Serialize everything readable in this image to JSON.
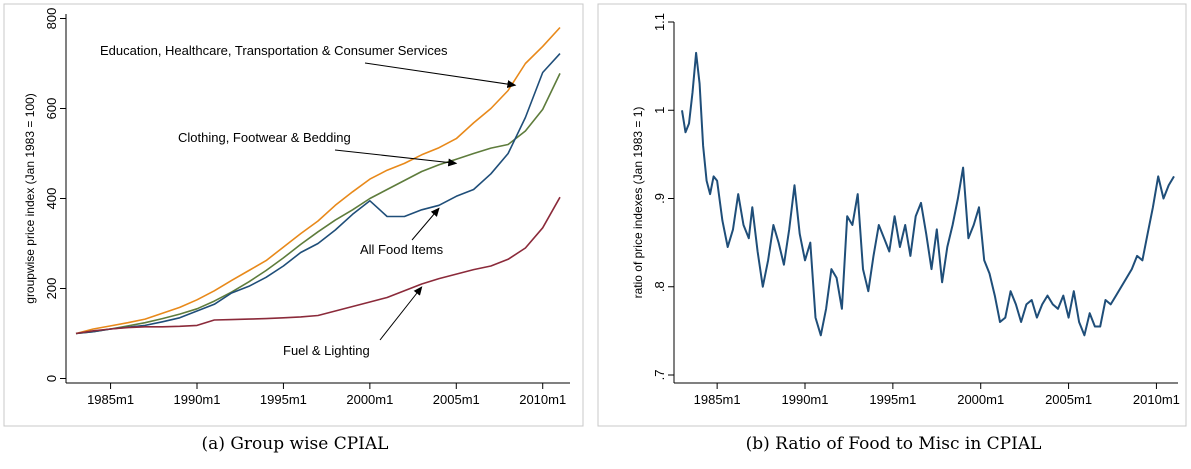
{
  "chart_data": [
    {
      "type": "line",
      "panel": "a",
      "caption": "(a) Group wise CPIAL",
      "ylabel": "groupwise price index (Jan 1983 = 100)",
      "xlabel": "",
      "xlim": [
        "1983m1",
        "2011m1"
      ],
      "ylim": [
        -10,
        810
      ],
      "grid": false,
      "legend": "none",
      "xticks": [
        "1985m1",
        "1990m1",
        "1995m1",
        "2000m1",
        "2005m1",
        "2010m1"
      ],
      "yticks": [
        "0",
        "200",
        "400",
        "600",
        "800"
      ],
      "x": [
        "1983m1",
        "1984m1",
        "1985m1",
        "1986m1",
        "1987m1",
        "1988m1",
        "1989m1",
        "1990m1",
        "1991m1",
        "1992m1",
        "1993m1",
        "1994m1",
        "1995m1",
        "1996m1",
        "1997m1",
        "1998m1",
        "1999m1",
        "2000m1",
        "2001m1",
        "2002m1",
        "2003m1",
        "2004m1",
        "2005m1",
        "2006m1",
        "2007m1",
        "2008m1",
        "2009m1",
        "2010m1",
        "2011m1"
      ],
      "series": [
        {
          "label": "Education, Healthcare, Transportation & Consumer Services",
          "color": "#e8891a",
          "values": [
            100,
            110,
            117,
            124,
            132,
            145,
            158,
            175,
            195,
            218,
            240,
            262,
            292,
            322,
            350,
            385,
            415,
            443,
            463,
            478,
            497,
            513,
            533,
            568,
            600,
            640,
            700,
            738,
            780
          ]
        },
        {
          "label": "Clothing, Footwear & Bedding",
          "color": "#5e7c3c",
          "values": [
            100,
            104,
            110,
            117,
            124,
            133,
            143,
            155,
            172,
            192,
            215,
            240,
            268,
            298,
            326,
            352,
            375,
            400,
            420,
            440,
            460,
            475,
            487,
            500,
            512,
            520,
            550,
            598,
            678
          ]
        },
        {
          "label": "All Food Items",
          "color": "#1f4e79",
          "values": [
            100,
            104,
            110,
            114,
            118,
            126,
            135,
            150,
            165,
            190,
            205,
            225,
            250,
            280,
            300,
            330,
            365,
            395,
            360,
            360,
            375,
            385,
            405,
            420,
            455,
            500,
            580,
            680,
            722
          ]
        },
        {
          "label": "Fuel & Lighting",
          "color": "#8b2a3a",
          "values": [
            100,
            106,
            110,
            113,
            115,
            115,
            116,
            118,
            130,
            131,
            132,
            133,
            135,
            137,
            140,
            150,
            160,
            170,
            180,
            195,
            210,
            222,
            232,
            242,
            250,
            265,
            290,
            335,
            403
          ]
        }
      ],
      "annotations": [
        {
          "text": "Education, Healthcare, Transportation & Consumer Services",
          "target": "2008m6"
        },
        {
          "text": "Clothing, Footwear & Bedding",
          "target": "2005m1"
        },
        {
          "text": "All Food Items",
          "target": "2004m1"
        },
        {
          "text": "Fuel & Lighting",
          "target": "2003m1"
        }
      ]
    },
    {
      "type": "line",
      "panel": "b",
      "caption": "(b) Ratio of Food to Misc in CPIAL",
      "ylabel": "ratio of price indexes (Jan 1983 = 1)",
      "xlabel": "",
      "xlim": [
        "1983m1",
        "2011m1"
      ],
      "ylim": [
        0.7,
        1.1
      ],
      "grid": false,
      "legend": "none",
      "xticks": [
        "1985m1",
        "1990m1",
        "1995m1",
        "2000m1",
        "2005m1",
        "2010m1"
      ],
      "yticks": [
        ".7",
        ".8",
        ".9",
        "1",
        "1.1"
      ],
      "series": [
        {
          "color": "#1f4e79",
          "x": [
            1983.0,
            1983.2,
            1983.4,
            1983.6,
            1983.8,
            1984.0,
            1984.2,
            1984.4,
            1984.6,
            1984.8,
            1985.0,
            1985.3,
            1985.6,
            1985.9,
            1986.2,
            1986.5,
            1986.8,
            1987.0,
            1987.3,
            1987.6,
            1987.9,
            1988.2,
            1988.5,
            1988.8,
            1989.1,
            1989.4,
            1989.7,
            1990.0,
            1990.3,
            1990.6,
            1990.9,
            1991.2,
            1991.5,
            1991.8,
            1992.1,
            1992.4,
            1992.7,
            1993.0,
            1993.3,
            1993.6,
            1993.9,
            1994.2,
            1994.5,
            1994.8,
            1995.1,
            1995.4,
            1995.7,
            1996.0,
            1996.3,
            1996.6,
            1996.9,
            1997.2,
            1997.5,
            1997.8,
            1998.1,
            1998.4,
            1998.7,
            1999.0,
            1999.3,
            1999.6,
            1999.9,
            2000.2,
            2000.5,
            2000.8,
            2001.1,
            2001.4,
            2001.7,
            2002.0,
            2002.3,
            2002.6,
            2002.9,
            2003.2,
            2003.5,
            2003.8,
            2004.1,
            2004.4,
            2004.7,
            2005.0,
            2005.3,
            2005.6,
            2005.9,
            2006.2,
            2006.5,
            2006.8,
            2007.1,
            2007.4,
            2007.7,
            2008.0,
            2008.3,
            2008.6,
            2008.9,
            2009.2,
            2009.5,
            2009.8,
            2010.1,
            2010.4,
            2010.7,
            2011.0
          ],
          "values": [
            1.0,
            0.975,
            0.985,
            1.02,
            1.065,
            1.03,
            0.96,
            0.92,
            0.905,
            0.925,
            0.92,
            0.875,
            0.845,
            0.865,
            0.905,
            0.87,
            0.855,
            0.89,
            0.84,
            0.8,
            0.83,
            0.87,
            0.85,
            0.825,
            0.865,
            0.915,
            0.86,
            0.83,
            0.85,
            0.765,
            0.745,
            0.775,
            0.82,
            0.81,
            0.775,
            0.88,
            0.87,
            0.905,
            0.82,
            0.795,
            0.835,
            0.87,
            0.855,
            0.84,
            0.88,
            0.845,
            0.87,
            0.835,
            0.88,
            0.895,
            0.86,
            0.82,
            0.865,
            0.805,
            0.845,
            0.87,
            0.9,
            0.935,
            0.855,
            0.87,
            0.89,
            0.83,
            0.815,
            0.79,
            0.76,
            0.765,
            0.795,
            0.78,
            0.76,
            0.78,
            0.785,
            0.765,
            0.78,
            0.79,
            0.78,
            0.775,
            0.79,
            0.765,
            0.795,
            0.76,
            0.745,
            0.77,
            0.755,
            0.755,
            0.785,
            0.78,
            0.79,
            0.8,
            0.81,
            0.82,
            0.835,
            0.83,
            0.86,
            0.89,
            0.925,
            0.9,
            0.915,
            0.925
          ]
        }
      ]
    }
  ]
}
